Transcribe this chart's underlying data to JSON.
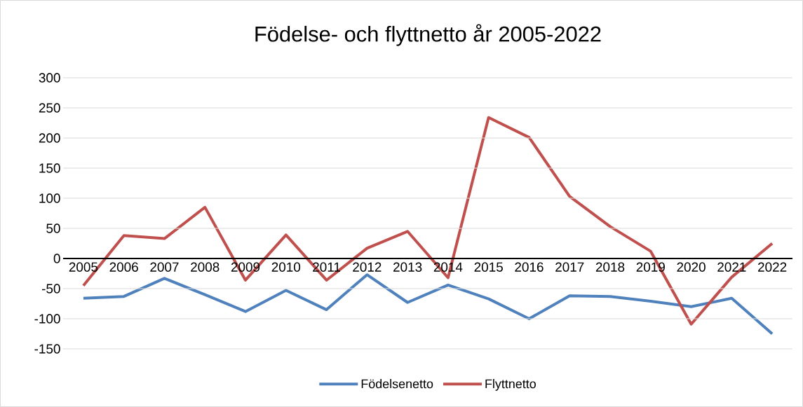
{
  "chart_data": {
    "type": "line",
    "title": "Födelse- och flyttnetto år 2005-2022",
    "categories": [
      "2005",
      "2006",
      "2007",
      "2008",
      "2009",
      "2010",
      "2011",
      "2012",
      "2013",
      "2014",
      "2015",
      "2016",
      "2017",
      "2018",
      "2019",
      "2020",
      "2021",
      "2022"
    ],
    "series": [
      {
        "name": "Födelsenetto",
        "color": "#4f81bd",
        "values": [
          -66,
          -63,
          -33,
          -60,
          -88,
          -53,
          -85,
          -27,
          -73,
          -44,
          -67,
          -100,
          -62,
          -63,
          -71,
          -80,
          -66,
          -125
        ]
      },
      {
        "name": "Flyttnetto",
        "color": "#c0504d",
        "values": [
          -45,
          38,
          33,
          85,
          -36,
          39,
          -36,
          17,
          45,
          -32,
          234,
          201,
          103,
          53,
          12,
          -109,
          -31,
          25
        ]
      }
    ],
    "ylim": [
      -150,
      300
    ],
    "yticks": [
      -150,
      -100,
      -50,
      0,
      50,
      100,
      150,
      200,
      250,
      300
    ],
    "grid": "y",
    "legend": "bottom"
  }
}
